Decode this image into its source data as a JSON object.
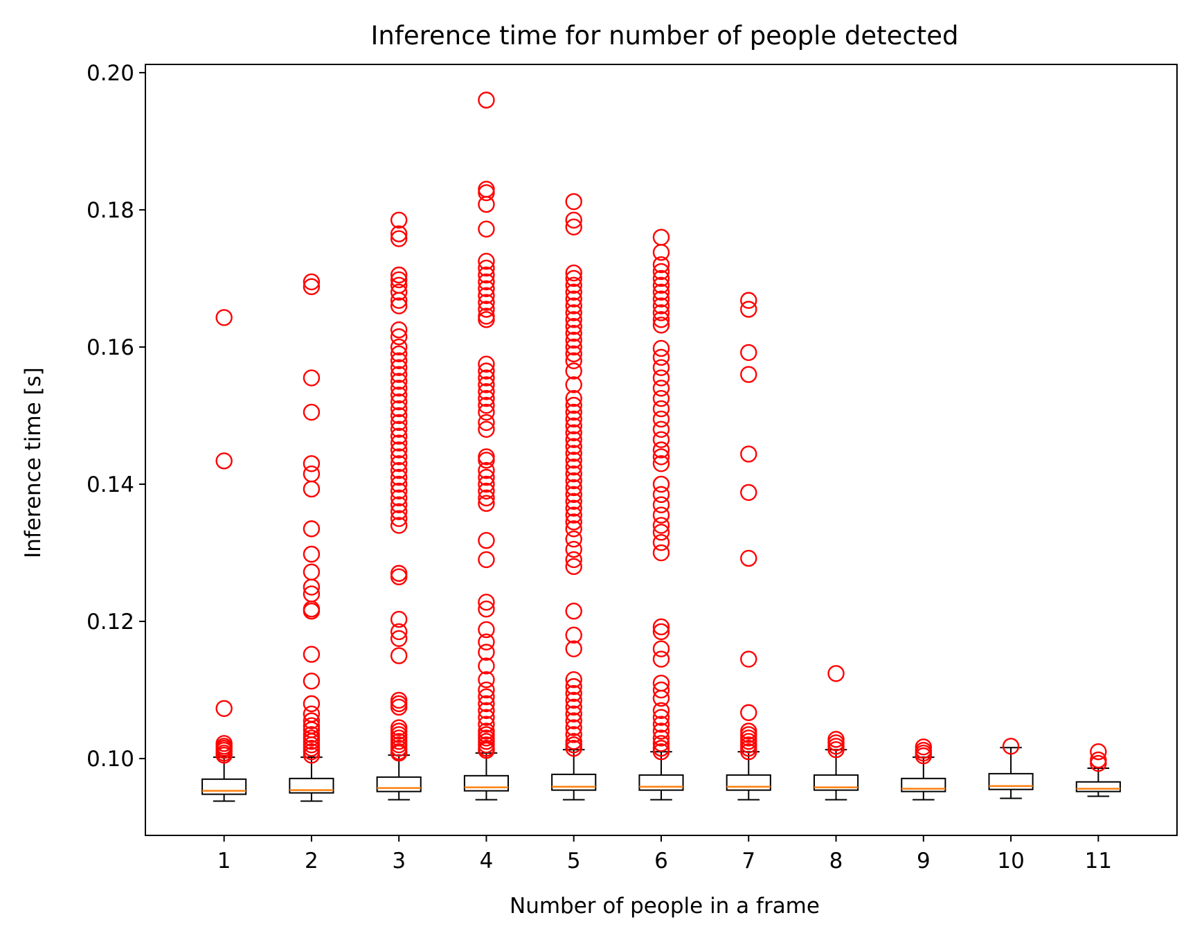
{
  "chart_data": {
    "type": "box",
    "title": "Inference time for number of people detected",
    "xlabel": "Number of people in a frame",
    "ylabel": "Inference time [s]",
    "ylim": [
      0.0888,
      0.2012
    ],
    "yticks": [
      "0.10",
      "0.12",
      "0.14",
      "0.16",
      "0.18",
      "0.20"
    ],
    "grid": false,
    "colors": {
      "box": "#000000",
      "median": "#ff7f0e",
      "outlier": "#ff0000"
    },
    "categories": [
      "1",
      "2",
      "3",
      "4",
      "5",
      "6",
      "7",
      "8",
      "9",
      "10",
      "11"
    ],
    "boxes": [
      {
        "whisker_low": 0.0938,
        "q1": 0.0948,
        "median": 0.0953,
        "q3": 0.097,
        "whisker_high": 0.1002,
        "outliers": [
          0.1643,
          0.1434,
          0.1073,
          0.1022,
          0.1018,
          0.1015,
          0.1012,
          0.1008,
          0.1005
        ]
      },
      {
        "whisker_low": 0.0938,
        "q1": 0.095,
        "median": 0.0954,
        "q3": 0.0971,
        "whisker_high": 0.1002,
        "outliers": [
          0.1695,
          0.1688,
          0.1555,
          0.1505,
          0.143,
          0.1415,
          0.1393,
          0.1335,
          0.1298,
          0.1272,
          0.125,
          0.124,
          0.1218,
          0.1215,
          0.1152,
          0.1113,
          0.108,
          0.1065,
          0.1055,
          0.1048,
          0.1042,
          0.1035,
          0.103,
          0.1025,
          0.102,
          0.1015,
          0.101,
          0.1005
        ]
      },
      {
        "whisker_low": 0.094,
        "q1": 0.0952,
        "median": 0.0957,
        "q3": 0.0973,
        "whisker_high": 0.1005,
        "outliers": [
          0.1785,
          0.1765,
          0.1758,
          0.1705,
          0.1698,
          0.169,
          0.168,
          0.1668,
          0.166,
          0.1625,
          0.1615,
          0.16,
          0.159,
          0.158,
          0.157,
          0.156,
          0.155,
          0.154,
          0.153,
          0.152,
          0.151,
          0.15,
          0.149,
          0.148,
          0.147,
          0.146,
          0.145,
          0.144,
          0.143,
          0.142,
          0.141,
          0.14,
          0.139,
          0.138,
          0.137,
          0.136,
          0.135,
          0.134,
          0.127,
          0.1265,
          0.1203,
          0.1185,
          0.1175,
          0.115,
          0.1085,
          0.108,
          0.1075,
          0.1045,
          0.104,
          0.1035,
          0.103,
          0.1025,
          0.102,
          0.1015,
          0.101,
          0.1008
        ]
      },
      {
        "whisker_low": 0.094,
        "q1": 0.0953,
        "median": 0.0958,
        "q3": 0.0975,
        "whisker_high": 0.1008,
        "outliers": [
          0.196,
          0.183,
          0.1825,
          0.1808,
          0.1772,
          0.1725,
          0.1715,
          0.1705,
          0.1695,
          0.1685,
          0.1675,
          0.1665,
          0.1655,
          0.1645,
          0.164,
          0.1575,
          0.1565,
          0.1555,
          0.1545,
          0.1535,
          0.1525,
          0.1515,
          0.1505,
          0.149,
          0.148,
          0.144,
          0.1435,
          0.142,
          0.141,
          0.14,
          0.139,
          0.138,
          0.1372,
          0.1318,
          0.129,
          0.1228,
          0.1218,
          0.1188,
          0.117,
          0.1155,
          0.1135,
          0.1115,
          0.11,
          0.109,
          0.108,
          0.107,
          0.106,
          0.105,
          0.104,
          0.1035,
          0.103,
          0.1025,
          0.102,
          0.1015,
          0.1012
        ]
      },
      {
        "whisker_low": 0.094,
        "q1": 0.0954,
        "median": 0.0959,
        "q3": 0.0977,
        "whisker_high": 0.1013,
        "outliers": [
          0.1812,
          0.1785,
          0.1775,
          0.1708,
          0.17,
          0.169,
          0.168,
          0.167,
          0.166,
          0.165,
          0.164,
          0.163,
          0.162,
          0.161,
          0.16,
          0.159,
          0.158,
          0.1565,
          0.1545,
          0.1525,
          0.1515,
          0.1505,
          0.1495,
          0.1485,
          0.1475,
          0.1465,
          0.1455,
          0.1445,
          0.1435,
          0.1425,
          0.1415,
          0.1405,
          0.1395,
          0.1385,
          0.1375,
          0.1365,
          0.1355,
          0.1345,
          0.1335,
          0.132,
          0.1305,
          0.129,
          0.128,
          0.1215,
          0.118,
          0.116,
          0.1115,
          0.1105,
          0.1095,
          0.1085,
          0.1075,
          0.1065,
          0.1055,
          0.1045,
          0.1035,
          0.1025,
          0.102,
          0.1015
        ]
      },
      {
        "whisker_low": 0.094,
        "q1": 0.0954,
        "median": 0.0959,
        "q3": 0.0976,
        "whisker_high": 0.101,
        "outliers": [
          0.176,
          0.1738,
          0.172,
          0.171,
          0.17,
          0.169,
          0.168,
          0.167,
          0.166,
          0.165,
          0.164,
          0.1632,
          0.1598,
          0.1585,
          0.157,
          0.1555,
          0.154,
          0.1525,
          0.151,
          0.1495,
          0.148,
          0.1465,
          0.145,
          0.144,
          0.143,
          0.14,
          0.1385,
          0.137,
          0.1355,
          0.134,
          0.133,
          0.1315,
          0.13,
          0.1192,
          0.1185,
          0.116,
          0.1145,
          0.111,
          0.11,
          0.1088,
          0.107,
          0.106,
          0.105,
          0.104,
          0.103,
          0.1022,
          0.1015,
          0.101
        ]
      },
      {
        "whisker_low": 0.094,
        "q1": 0.0954,
        "median": 0.0959,
        "q3": 0.0976,
        "whisker_high": 0.101,
        "outliers": [
          0.1668,
          0.1655,
          0.1592,
          0.156,
          0.1444,
          0.1388,
          0.1292,
          0.1145,
          0.1067,
          0.104,
          0.1035,
          0.103,
          0.1025,
          0.102,
          0.1015,
          0.101
        ]
      },
      {
        "whisker_low": 0.094,
        "q1": 0.0954,
        "median": 0.0958,
        "q3": 0.0976,
        "whisker_high": 0.1013,
        "outliers": [
          0.1124,
          0.1028,
          0.1023,
          0.1018,
          0.1013
        ]
      },
      {
        "whisker_low": 0.094,
        "q1": 0.0952,
        "median": 0.0956,
        "q3": 0.0971,
        "whisker_high": 0.1002,
        "outliers": [
          0.1017,
          0.1012,
          0.1008,
          0.1004
        ]
      },
      {
        "whisker_low": 0.0942,
        "q1": 0.0955,
        "median": 0.096,
        "q3": 0.0978,
        "whisker_high": 0.1016,
        "outliers": [
          0.1018
        ]
      },
      {
        "whisker_low": 0.0945,
        "q1": 0.0952,
        "median": 0.0956,
        "q3": 0.0966,
        "whisker_high": 0.0986,
        "outliers": [
          0.101,
          0.0998,
          0.0993
        ]
      }
    ]
  }
}
